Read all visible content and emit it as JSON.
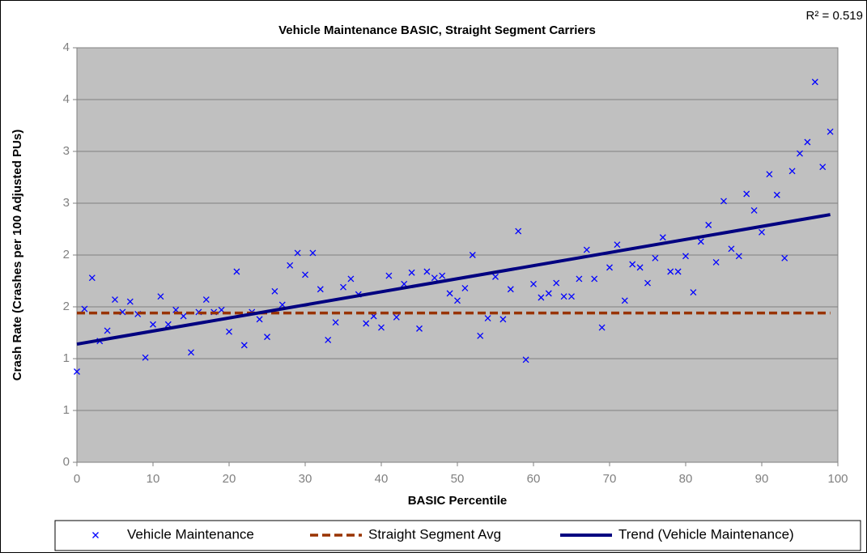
{
  "chart_data": {
    "type": "scatter",
    "title": "Vehicle Maintenance BASIC, Straight Segment Carriers",
    "annotation": "R² = 0.519",
    "x_label": "BASIC Percentile",
    "y_label": "Crash Rate (Crashes per 100 Adjusted PUs)",
    "xlim": [
      0,
      100
    ],
    "xticks": [
      0,
      10,
      20,
      30,
      40,
      50,
      60,
      70,
      80,
      90,
      100
    ],
    "ylim": [
      0,
      4
    ],
    "yticks": [
      0,
      {
        "value": 0.5,
        "label": "1"
      },
      1,
      {
        "value": 1.5,
        "label": "2"
      },
      2,
      {
        "value": 2.5,
        "label": "3"
      },
      3,
      {
        "value": 3.5,
        "label": "4"
      },
      4
    ],
    "grid": true,
    "legend": "bottom",
    "series": [
      {
        "name": "Vehicle Maintenance",
        "kind": "scatter",
        "color": "#0000ff",
        "x": [
          0,
          1,
          2,
          3,
          4,
          5,
          6,
          7,
          8,
          9,
          10,
          11,
          12,
          13,
          14,
          15,
          16,
          17,
          18,
          19,
          20,
          21,
          22,
          23,
          24,
          25,
          26,
          27,
          28,
          29,
          30,
          31,
          32,
          33,
          34,
          35,
          36,
          37,
          38,
          39,
          40,
          41,
          42,
          43,
          44,
          45,
          46,
          47,
          48,
          49,
          50,
          51,
          52,
          53,
          54,
          55,
          56,
          57,
          58,
          59,
          60,
          61,
          62,
          63,
          64,
          65,
          66,
          67,
          68,
          69,
          70,
          71,
          72,
          73,
          74,
          75,
          76,
          77,
          78,
          79,
          80,
          81,
          82,
          83,
          84,
          85,
          86,
          87,
          88,
          89,
          90,
          91,
          92,
          93,
          94,
          95,
          96,
          97,
          98,
          99
        ],
        "values": [
          0.875,
          1.48,
          1.78,
          1.17,
          1.27,
          1.57,
          1.45,
          1.55,
          1.43,
          1.01,
          1.33,
          1.6,
          1.33,
          1.47,
          1.41,
          1.06,
          1.45,
          1.57,
          1.45,
          1.47,
          1.26,
          1.84,
          1.13,
          1.45,
          1.38,
          1.21,
          1.65,
          1.52,
          1.9,
          2.02,
          1.81,
          2.02,
          1.67,
          1.18,
          1.35,
          1.69,
          1.77,
          1.62,
          1.34,
          1.41,
          1.3,
          1.8,
          1.4,
          1.72,
          1.83,
          1.29,
          1.84,
          1.78,
          1.8,
          1.63,
          1.56,
          1.68,
          2.0,
          1.22,
          1.39,
          1.79,
          1.38,
          1.67,
          2.23,
          0.99,
          1.72,
          1.59,
          1.63,
          1.73,
          1.6,
          1.6,
          1.77,
          2.05,
          1.77,
          1.3,
          1.88,
          2.1,
          1.56,
          1.91,
          1.88,
          1.73,
          1.97,
          2.17,
          1.84,
          1.84,
          1.99,
          1.64,
          2.13,
          2.29,
          1.93,
          2.52,
          2.06,
          1.99,
          2.59,
          2.43,
          2.22,
          2.78,
          2.58,
          1.97,
          2.81,
          2.98,
          3.09,
          3.67,
          2.85,
          3.19
        ]
      },
      {
        "name": "Straight Segment Avg",
        "kind": "dashed",
        "color": "#993300",
        "x": [
          0,
          99
        ],
        "values": [
          1.44,
          1.44
        ]
      },
      {
        "name": "Trend (Vehicle Maintenance)",
        "kind": "line",
        "color": "#000080",
        "x": [
          0,
          99
        ],
        "values": [
          1.14,
          2.39
        ]
      }
    ]
  }
}
